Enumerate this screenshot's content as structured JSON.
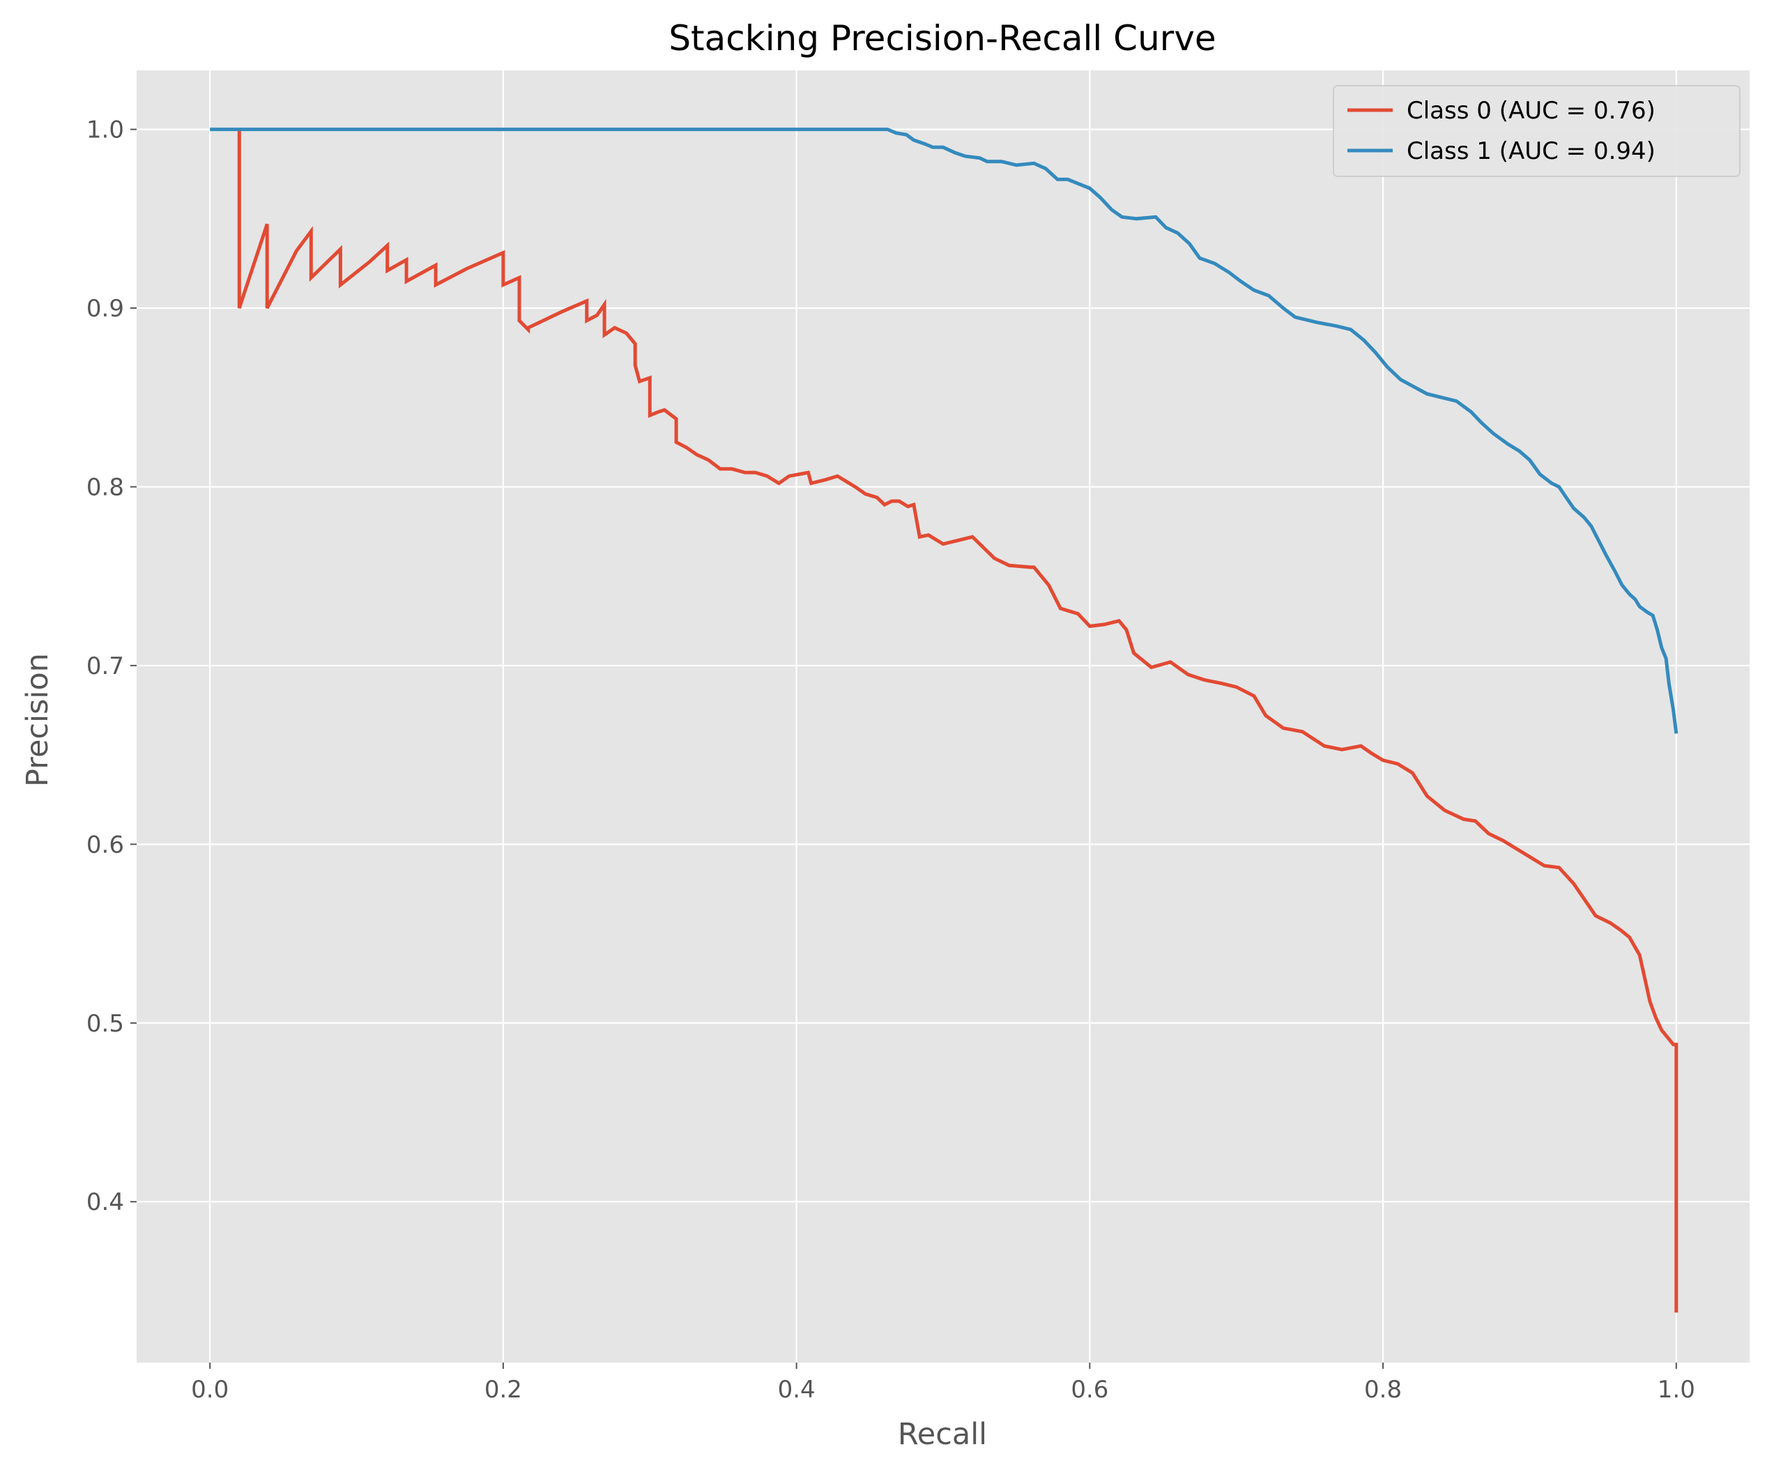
{
  "chart_data": {
    "type": "line",
    "title": "Stacking Precision-Recall Curve",
    "xlabel": "Recall",
    "ylabel": "Precision",
    "xlim": [
      -0.05,
      1.05
    ],
    "ylim": [
      0.31,
      1.033
    ],
    "xticks": [
      0.0,
      0.2,
      0.4,
      0.6,
      0.8,
      1.0
    ],
    "xtick_labels": [
      "0.0",
      "0.2",
      "0.4",
      "0.6",
      "0.8",
      "1.0"
    ],
    "yticks": [
      0.4,
      0.5,
      0.6,
      0.7,
      0.8,
      0.9,
      1.0
    ],
    "ytick_labels": [
      "0.4",
      "0.5",
      "0.6",
      "0.7",
      "0.8",
      "0.9",
      "1.0"
    ],
    "grid": true,
    "legend_position": "top-right",
    "background": "#e5e5e5",
    "series": [
      {
        "name": "Class 0 (AUC = 0.76)",
        "color": "#e24a33",
        "x": [
          0.02,
          0.02,
          0.02,
          0.039,
          0.039,
          0.059,
          0.069,
          0.069,
          0.089,
          0.089,
          0.109,
          0.121,
          0.121,
          0.134,
          0.134,
          0.154,
          0.154,
          0.175,
          0.2,
          0.2,
          0.211,
          0.211,
          0.217,
          0.217,
          0.24,
          0.257,
          0.257,
          0.264,
          0.269,
          0.269,
          0.276,
          0.284,
          0.29,
          0.29,
          0.293,
          0.3,
          0.3,
          0.306,
          0.31,
          0.318,
          0.318,
          0.325,
          0.332,
          0.34,
          0.348,
          0.356,
          0.365,
          0.372,
          0.38,
          0.388,
          0.395,
          0.408,
          0.41,
          0.42,
          0.428,
          0.44,
          0.447,
          0.455,
          0.46,
          0.465,
          0.47,
          0.476,
          0.48,
          0.484,
          0.49,
          0.5,
          0.51,
          0.52,
          0.535,
          0.545,
          0.56,
          0.562,
          0.572,
          0.58,
          0.592,
          0.6,
          0.61,
          0.62,
          0.625,
          0.63,
          0.642,
          0.655,
          0.667,
          0.678,
          0.69,
          0.7,
          0.712,
          0.72,
          0.732,
          0.745,
          0.76,
          0.772,
          0.785,
          0.792,
          0.8,
          0.81,
          0.82,
          0.83,
          0.842,
          0.855,
          0.863,
          0.872,
          0.882,
          0.89,
          0.9,
          0.91,
          0.92,
          0.93,
          0.945,
          0.955,
          0.962,
          0.968,
          0.975,
          0.978,
          0.982,
          0.986,
          0.99,
          0.994,
          0.998,
          1.0,
          1.0
        ],
        "y": [
          1.0,
          0.9,
          0.9,
          0.947,
          0.9,
          0.932,
          0.943,
          0.917,
          0.933,
          0.913,
          0.926,
          0.935,
          0.921,
          0.927,
          0.915,
          0.924,
          0.913,
          0.922,
          0.931,
          0.913,
          0.917,
          0.893,
          0.888,
          0.889,
          0.898,
          0.904,
          0.893,
          0.896,
          0.902,
          0.885,
          0.889,
          0.886,
          0.88,
          0.868,
          0.859,
          0.861,
          0.84,
          0.842,
          0.843,
          0.838,
          0.825,
          0.822,
          0.818,
          0.815,
          0.81,
          0.81,
          0.808,
          0.808,
          0.806,
          0.802,
          0.806,
          0.808,
          0.802,
          0.804,
          0.806,
          0.8,
          0.796,
          0.794,
          0.79,
          0.792,
          0.792,
          0.789,
          0.79,
          0.772,
          0.773,
          0.768,
          0.77,
          0.772,
          0.76,
          0.756,
          0.755,
          0.755,
          0.745,
          0.732,
          0.729,
          0.722,
          0.723,
          0.725,
          0.72,
          0.707,
          0.699,
          0.702,
          0.695,
          0.692,
          0.69,
          0.688,
          0.683,
          0.672,
          0.665,
          0.663,
          0.655,
          0.653,
          0.655,
          0.651,
          0.647,
          0.645,
          0.64,
          0.627,
          0.619,
          0.614,
          0.613,
          0.606,
          0.602,
          0.598,
          0.593,
          0.588,
          0.587,
          0.578,
          0.56,
          0.556,
          0.552,
          0.548,
          0.538,
          0.527,
          0.512,
          0.503,
          0.496,
          0.492,
          0.488,
          0.488,
          0.338
        ]
      },
      {
        "name": "Class 1 (AUC = 0.94)",
        "color": "#348abd",
        "x": [
          0.0,
          0.06,
          0.2,
          0.3,
          0.4,
          0.462,
          0.468,
          0.475,
          0.48,
          0.487,
          0.493,
          0.5,
          0.508,
          0.515,
          0.525,
          0.53,
          0.54,
          0.55,
          0.562,
          0.57,
          0.578,
          0.585,
          0.6,
          0.607,
          0.615,
          0.622,
          0.632,
          0.645,
          0.652,
          0.66,
          0.668,
          0.675,
          0.685,
          0.695,
          0.703,
          0.712,
          0.722,
          0.732,
          0.74,
          0.755,
          0.768,
          0.778,
          0.787,
          0.795,
          0.803,
          0.812,
          0.83,
          0.84,
          0.85,
          0.86,
          0.867,
          0.875,
          0.885,
          0.893,
          0.9,
          0.907,
          0.915,
          0.92,
          0.925,
          0.93,
          0.937,
          0.942,
          0.947,
          0.952,
          0.958,
          0.963,
          0.968,
          0.972,
          0.975,
          0.98,
          0.984,
          0.987,
          0.99,
          0.993,
          0.995,
          0.998,
          1.0
        ],
        "y": [
          1.0,
          1.0,
          1.0,
          1.0,
          1.0,
          1.0,
          0.998,
          0.997,
          0.994,
          0.992,
          0.99,
          0.99,
          0.987,
          0.985,
          0.984,
          0.982,
          0.982,
          0.98,
          0.981,
          0.978,
          0.972,
          0.972,
          0.967,
          0.962,
          0.955,
          0.951,
          0.95,
          0.951,
          0.945,
          0.942,
          0.936,
          0.928,
          0.925,
          0.92,
          0.915,
          0.91,
          0.907,
          0.9,
          0.895,
          0.892,
          0.89,
          0.888,
          0.882,
          0.875,
          0.867,
          0.86,
          0.852,
          0.85,
          0.848,
          0.842,
          0.836,
          0.83,
          0.824,
          0.82,
          0.815,
          0.807,
          0.802,
          0.8,
          0.794,
          0.788,
          0.783,
          0.778,
          0.77,
          0.762,
          0.753,
          0.745,
          0.74,
          0.737,
          0.733,
          0.73,
          0.728,
          0.72,
          0.71,
          0.704,
          0.69,
          0.675,
          0.662
        ]
      }
    ]
  }
}
